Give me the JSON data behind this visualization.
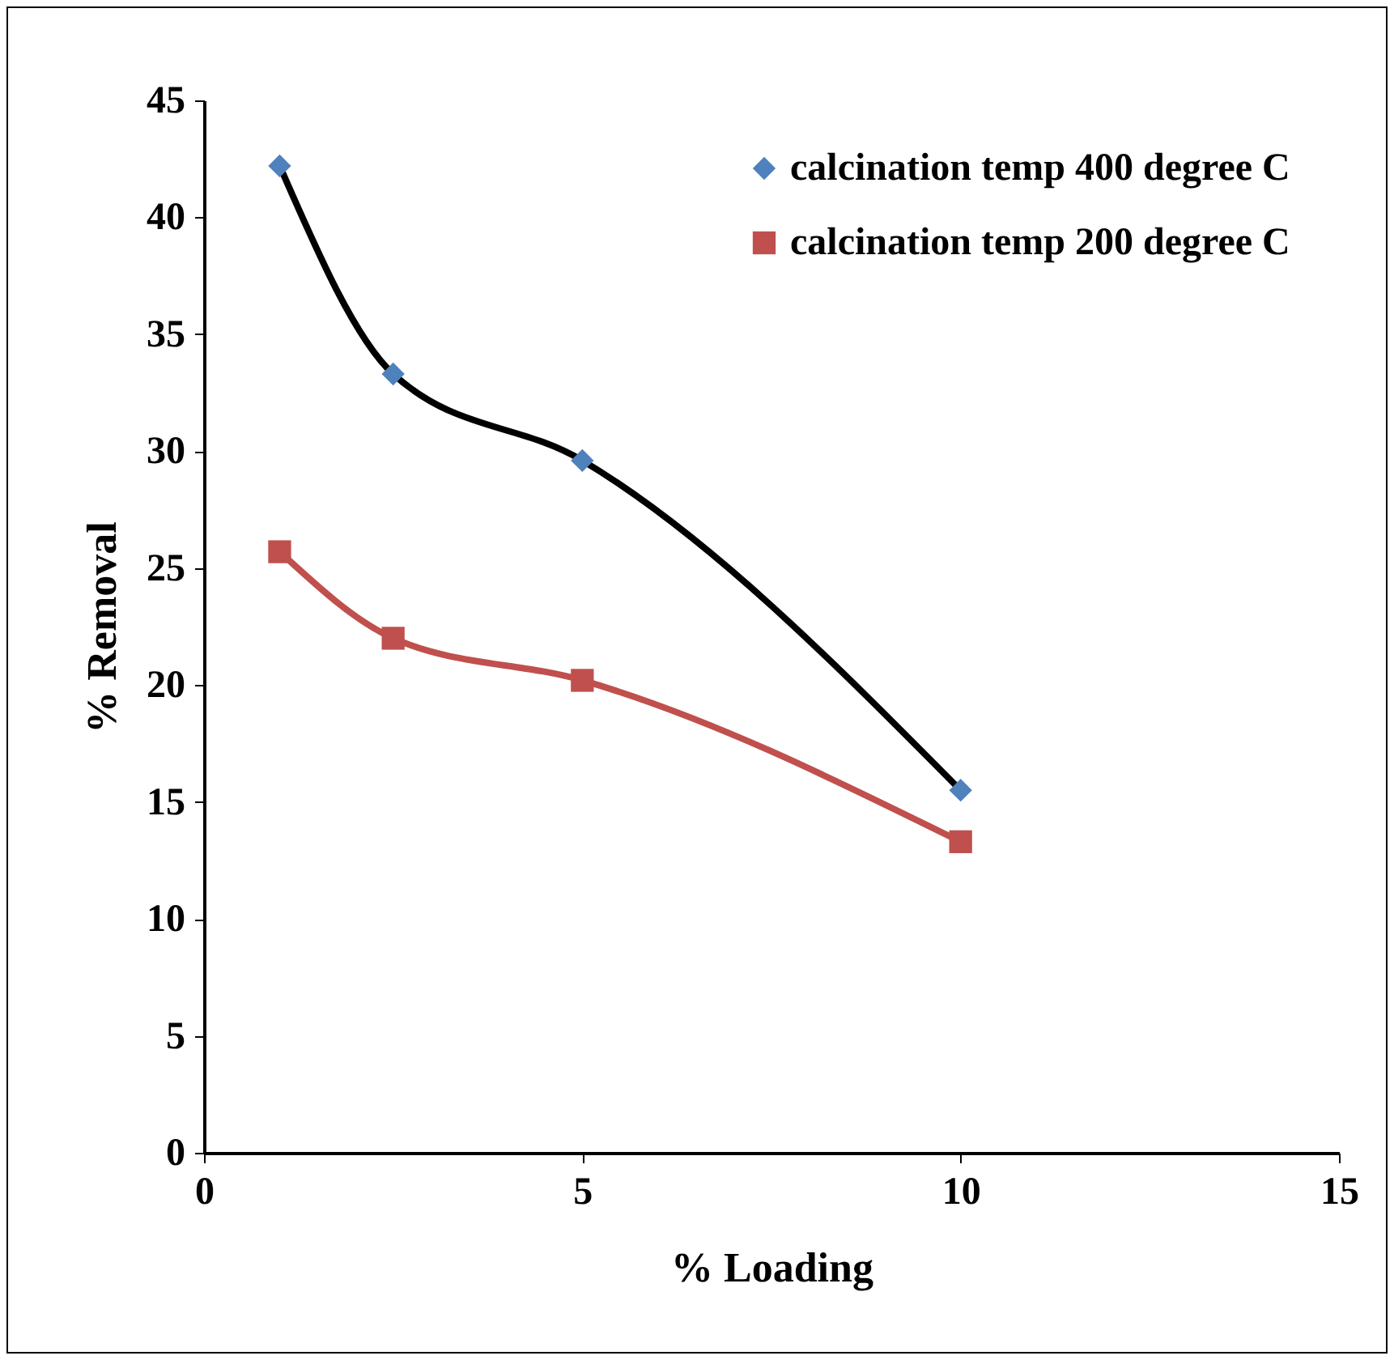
{
  "chart_data": {
    "type": "line",
    "xlabel": "%  Loading",
    "ylabel": "% Removal",
    "x": [
      1,
      2.5,
      5,
      10
    ],
    "series": [
      {
        "name": "calcination temp 400 degree C",
        "color": "#000000",
        "colors": [
          "#4f81bd",
          "#4f81bd",
          "#4f81bd",
          "#4f81bd"
        ],
        "marker": "diamond",
        "values": [
          42.2,
          33.3,
          29.6,
          15.5
        ]
      },
      {
        "name": "calcination temp 200 degree C",
        "color": "#c0504d",
        "colors": [
          "#c0504d",
          "#c0504d",
          "#c0504d",
          "#c0504d"
        ],
        "marker": "square",
        "values": [
          25.7,
          22.0,
          20.2,
          13.3
        ]
      }
    ],
    "xlim": [
      0,
      15
    ],
    "xticks": [
      0,
      5,
      10,
      15
    ],
    "ylim": [
      0,
      45
    ],
    "yticks": [
      0,
      5,
      10,
      15,
      20,
      25,
      30,
      35,
      40,
      45
    ],
    "grid": false,
    "legend": "top right",
    "line_style": "solid"
  }
}
